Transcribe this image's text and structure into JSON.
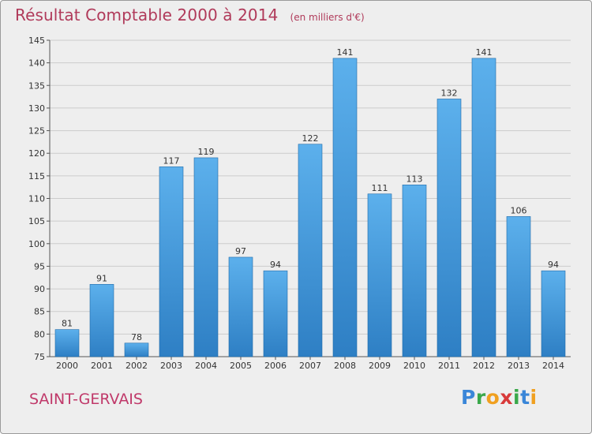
{
  "title": "Résultat Comptable 2000 à 2014",
  "subtitle": "(en milliers d'€)",
  "commune": "SAINT-GERVAIS",
  "logo": {
    "text": "Proxiti",
    "letters": [
      "P",
      "r",
      "o",
      "x",
      "i",
      "t",
      "i"
    ],
    "colors": [
      "#3a86d8",
      "#3aa84a",
      "#f0a020",
      "#d83a3a",
      "#3aa84a",
      "#3a86d8",
      "#f0a020"
    ]
  },
  "colors": {
    "bar_top": "#5cb0ec",
    "bar_bottom": "#2e7fc4",
    "bar_edge": "#1f6aa8",
    "title": "#b03a5a",
    "grid": "#cccccc"
  },
  "chart_data": {
    "type": "bar",
    "categories": [
      "2000",
      "2001",
      "2002",
      "2003",
      "2004",
      "2005",
      "2006",
      "2007",
      "2008",
      "2009",
      "2010",
      "2011",
      "2012",
      "2013",
      "2014"
    ],
    "values": [
      81,
      91,
      78,
      117,
      119,
      97,
      94,
      122,
      141,
      111,
      113,
      132,
      141,
      106,
      94
    ],
    "ylim": [
      75,
      145
    ],
    "yticks": [
      75,
      80,
      85,
      90,
      95,
      100,
      105,
      110,
      115,
      120,
      125,
      130,
      135,
      140,
      145
    ],
    "grid": true,
    "xlabel": "",
    "ylabel": ""
  }
}
